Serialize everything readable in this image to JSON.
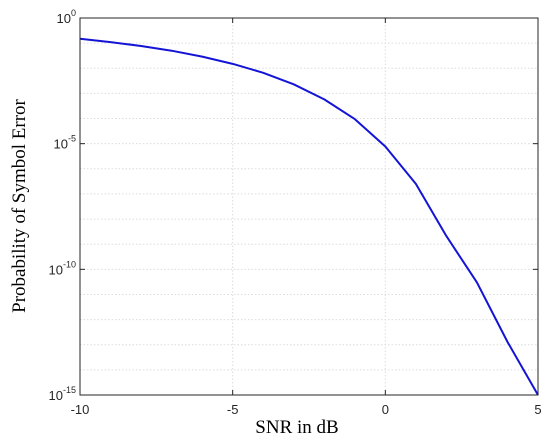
{
  "colors": {
    "line": "#1414d6",
    "grid": "#dcdcdc",
    "axis": "#262626",
    "background": "#ffffff"
  },
  "chart_data": {
    "type": "line",
    "title": "",
    "xlabel": "SNR in dB",
    "ylabel": "Probability of Symbol Error",
    "xlim": [
      -10,
      5
    ],
    "ylim": [
      1e-15,
      1
    ],
    "yscale": "log",
    "grid": true,
    "x_ticks": [
      {
        "value": -10,
        "label": "-10"
      },
      {
        "value": -5,
        "label": "-5"
      },
      {
        "value": 0,
        "label": "0"
      },
      {
        "value": 5,
        "label": "5"
      }
    ],
    "y_ticks": [
      {
        "value": 1,
        "base": "10",
        "exp": "0"
      },
      {
        "value": 1e-05,
        "base": "10",
        "exp": "-5"
      },
      {
        "value": 1e-10,
        "base": "10",
        "exp": "-10"
      },
      {
        "value": 1e-15,
        "base": "10",
        "exp": "-15"
      }
    ],
    "series": [
      {
        "x": [
          -10,
          -9,
          -8,
          -7,
          -6,
          -5,
          -4,
          -3,
          -2,
          -1,
          0,
          1,
          2,
          3,
          4,
          5
        ],
        "y": [
          0.15,
          0.11,
          0.077,
          0.05,
          0.029,
          0.015,
          0.0066,
          0.0023,
          0.00058,
          9.5e-05,
          7.7e-06,
          2.5e-07,
          2.1e-09,
          3e-11,
          1.3e-13,
          1e-15
        ]
      }
    ]
  }
}
